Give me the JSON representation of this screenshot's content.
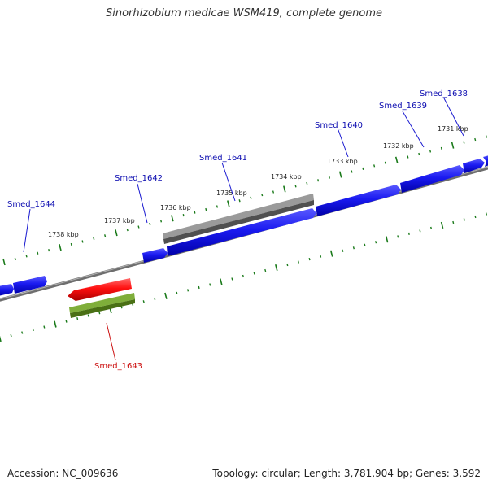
{
  "title": "Sinorhizobium medicae WSM419, complete genome",
  "footer": {
    "accession": "Accession: NC_009636",
    "summary": "Topology: circular; Length: 3,781,904 bp; Genes: 3,592"
  },
  "colors": {
    "forward_gene": "#1010e0",
    "reverse_gene": "#ee1111",
    "gray_feature": "#5a5a5a",
    "green_feature": "#5c8a1e",
    "ticks": "#1a7a1a",
    "backbone": "#808080",
    "forward_label": "#0b0bb0",
    "reverse_label": "#cc1111"
  },
  "scale_labels": [
    "1731 kbp",
    "1732 kbp",
    "1733 kbp",
    "1734 kbp",
    "1735 kbp",
    "1736 kbp",
    "1737 kbp",
    "1738 kbp"
  ],
  "gene_labels": [
    {
      "name": "Smed_1638",
      "strand": "forward"
    },
    {
      "name": "Smed_1639",
      "strand": "forward"
    },
    {
      "name": "Smed_1640",
      "strand": "forward"
    },
    {
      "name": "Smed_1641",
      "strand": "forward"
    },
    {
      "name": "Smed_1642",
      "strand": "forward"
    },
    {
      "name": "Smed_1643",
      "strand": "reverse"
    },
    {
      "name": "Smed_1644",
      "strand": "forward"
    }
  ]
}
